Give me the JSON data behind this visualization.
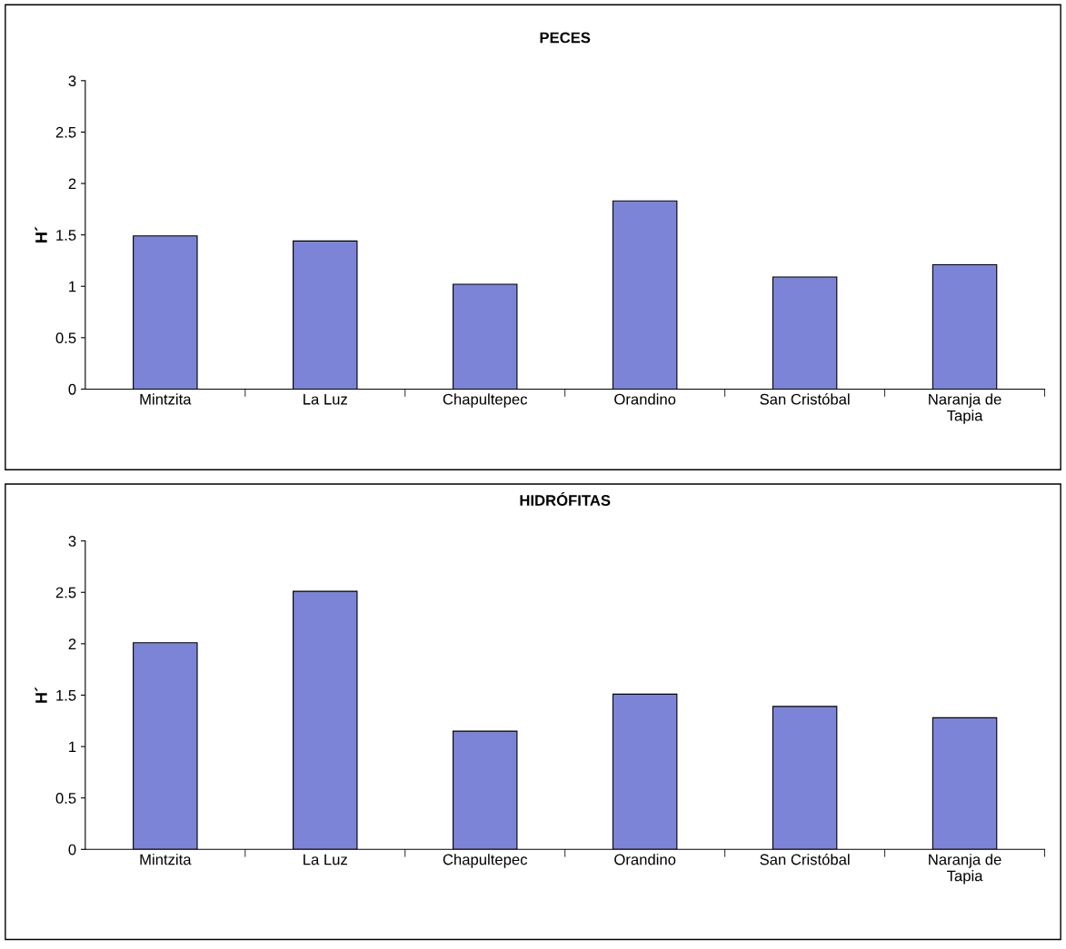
{
  "chart_data": [
    {
      "type": "bar",
      "title": "PECES",
      "ylabel": "H´",
      "categories": [
        "Mintzita",
        "La Luz",
        "Chapultepec",
        "Orandino",
        "San Cristóbal",
        "Naranja de\nTapia"
      ],
      "values": [
        1.49,
        1.44,
        1.02,
        1.83,
        1.09,
        1.21
      ],
      "color": "#7b84d6",
      "ylim": [
        0,
        3
      ],
      "yticks": [
        0,
        0.5,
        1,
        1.5,
        2,
        2.5,
        3
      ],
      "grid": false
    },
    {
      "type": "bar",
      "title": "HIDRÓFITAS",
      "ylabel": "H´",
      "categories": [
        "Mintzita",
        "La Luz",
        "Chapultepec",
        "Orandino",
        "San Cristóbal",
        "Naranja de\nTapia"
      ],
      "values": [
        2.01,
        2.51,
        1.15,
        1.51,
        1.39,
        1.28
      ],
      "color": "#7b84d6",
      "ylim": [
        0,
        3
      ],
      "yticks": [
        0,
        0.5,
        1,
        1.5,
        2,
        2.5,
        3
      ],
      "grid": false
    }
  ]
}
